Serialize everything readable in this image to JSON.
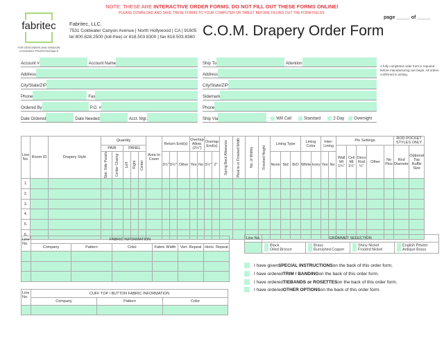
{
  "header": {
    "note_prefix": "NOTE: THESE ARE ",
    "note_bold": "INTERACTIVE ORDER FORMS. DO NOT FILL OUT THESE FORMS ONLINE!",
    "note2": "PLEASE DOWNLOAD AND SAVE THESE FORMS TO YOUR COMPUTER OR TABLET BEFORE FILLING OUT THE FORM FIELDS.",
    "page": "page _____ of _____",
    "title": "C.O.M. Drapery Order Form"
  },
  "logo": {
    "name": "fabritec",
    "tagline": "FOR DESIGNERS AND WINDOW COVERING PROFESSIONALS"
  },
  "company": {
    "name": "Fabritec, LLC.",
    "address": "7531 Coldwater Canyon Avenue  |  North Hollywood  |  CA  |  91605",
    "phones": "tel 800.828.2500 (toll-free) or 818.503.8300  |  fax 818.503.8360"
  },
  "account": {
    "account_no": "Account #",
    "account_name": "Account Name",
    "address": "Address",
    "city": "City/State/ZIP",
    "phone": "Phone",
    "fax": "Fax",
    "ordered_by": "Ordered By",
    "po": "P.O. #",
    "date_ordered": "Date Ordered",
    "date_needed": "Date Needed",
    "acct_mgr": "Acct. Mgr."
  },
  "ship": {
    "ship_to": "Ship To",
    "attention": "Attention",
    "address": "Address",
    "city": "City/State/ZIP",
    "sidemark": "Sidemark",
    "phone": "Phone",
    "ship_via": "Ship Via",
    "options": [
      "Will Call",
      "Standard",
      "2-Day",
      "Overnight"
    ]
  },
  "side_note": "A fully completed order form is required before manufacturing can begin. All orders confirmed in writing.",
  "main_table": {
    "line_no": "Line No.",
    "room_id": "Room ID",
    "drapery_style": "Drapery Style",
    "quantity": "Quantity",
    "pair": "PAIR",
    "panel": "PANEL",
    "stat_side": "Stat. Side Panels",
    "center_closing": "Center Closing",
    "left": "Left",
    "right": "Right",
    "center": "Center",
    "area": "Area to Cover",
    "return_ends": "Return End(s)",
    "r1": "3½\"",
    "r2": "5½\"",
    "r_other": "Other",
    "overlap_allow": "Overlap Allow. (2½\")",
    "yes": "Yes",
    "no": "No",
    "overlap_ends": "Overlap End(s)",
    "o1": "3½\"",
    "o2": "2\"",
    "spring_back": "Spring Back Allowance",
    "pleat_to": "Pleat to or Finished Width",
    "widths": "No. of Widths",
    "finished_height": "Finished Height",
    "lining_type": "Lining Type",
    "none": "None",
    "std": "Std",
    "bo": "B/O",
    "lining_color": "Lining Color",
    "white": "White",
    "ivory": "Ivory",
    "interlining": "Inter-Lining",
    "pin_settings": "Pin Settings",
    "wall": "Wall Mt 1¾\"",
    "ceil": "Ceil Mt 1¼\"",
    "deco": "Deco Rod ¼\"",
    "other": "Other",
    "no_pins": "No Pins",
    "rod_pocket": "ROD POCKET STYLES ONLY",
    "rod_diameter": "Rod Diameter",
    "ruffle": "Optional Top Ruffle Size",
    "rows": [
      "1.",
      "2.",
      "3.",
      "4.",
      "5.",
      "6."
    ]
  },
  "fabric": {
    "line_no": "Line No.",
    "title": "FABRIC INFORMATION",
    "cols": [
      "Company",
      "Pattern",
      "Color",
      "Fabric Width",
      "Vert. Repeat",
      "Horiz. Repeat"
    ]
  },
  "cuff": {
    "line_no": "Line No.",
    "title": "CUFF TOP / BUTTON FABRIC INFORMATION",
    "cols": [
      "Company",
      "Pattern",
      "Color"
    ]
  },
  "grommet": {
    "line_no": "Line No.",
    "title": "GROMMET SELECTION",
    "options": [
      "Black",
      "Oiled Bronze",
      "Brass",
      "Burnished Copper",
      "Shiny Nickel",
      "Frosted Nickel",
      "English Pewter",
      "Antique Brass"
    ]
  },
  "checks": [
    {
      "a": "I have given ",
      "b": "SPECIAL INSTRUCTIONS",
      "c": " on the back of this order form."
    },
    {
      "a": "I have ordered ",
      "b": "TRIM / BANDING",
      "c": " on the back of this order form."
    },
    {
      "a": "I have ordered ",
      "b": "TIEBANDS or ROSETTES",
      "c": " on the back of this order form."
    },
    {
      "a": "I have ordered ",
      "b": "OTHER OPTIONS",
      "c": " on the back of this order form."
    }
  ],
  "colors": {
    "field": "#bdf5d8",
    "note": "#e0383f",
    "logo": "#a8d878"
  }
}
